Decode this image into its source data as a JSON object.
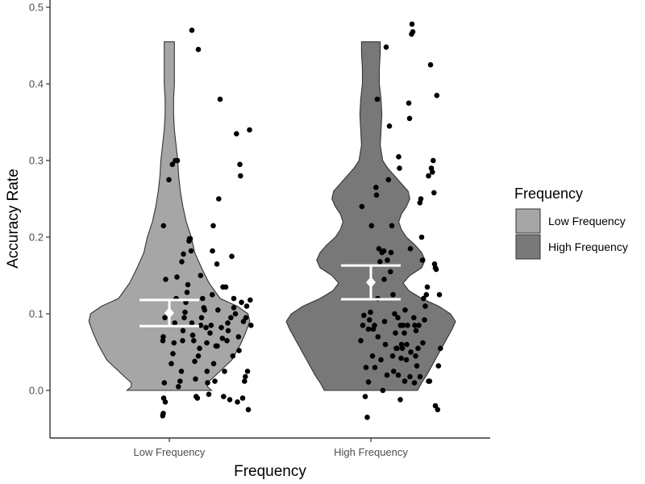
{
  "chart_data": {
    "type": "violin",
    "xlabel": "Frequency",
    "ylabel": "Accuracy Rate",
    "ylim": [
      -0.06,
      0.505
    ],
    "yticks": [
      "0.0",
      "0.1",
      "0.2",
      "0.3",
      "0.4",
      "0.5"
    ],
    "categories": [
      "Low Frequency",
      "High Frequency"
    ],
    "legend": {
      "title": "Frequency",
      "position": "right",
      "items": [
        "Low Frequency",
        "High Frequency"
      ]
    },
    "colors": {
      "low_fill": "#a6a6a6",
      "high_fill": "#787878",
      "outline": "#333333",
      "points": "#000000",
      "summary": "#ffffff"
    },
    "grid": false,
    "series": [
      {
        "name": "Low Frequency",
        "density": [
          [
            0.0,
            0.5
          ],
          [
            0.005,
            0.45
          ],
          [
            0.01,
            0.45
          ],
          [
            0.02,
            0.55
          ],
          [
            0.04,
            0.74
          ],
          [
            0.06,
            0.84
          ],
          [
            0.075,
            0.9
          ],
          [
            0.09,
            0.95
          ],
          [
            0.1,
            0.93
          ],
          [
            0.11,
            0.8
          ],
          [
            0.12,
            0.6
          ],
          [
            0.14,
            0.47
          ],
          [
            0.16,
            0.38
          ],
          [
            0.18,
            0.3
          ],
          [
            0.2,
            0.26
          ],
          [
            0.22,
            0.2
          ],
          [
            0.24,
            0.16
          ],
          [
            0.26,
            0.13
          ],
          [
            0.28,
            0.11
          ],
          [
            0.3,
            0.1
          ],
          [
            0.32,
            0.08
          ],
          [
            0.34,
            0.06
          ],
          [
            0.36,
            0.05
          ],
          [
            0.38,
            0.05
          ],
          [
            0.4,
            0.06
          ],
          [
            0.42,
            0.06
          ],
          [
            0.44,
            0.06
          ],
          [
            0.455,
            0.06
          ]
        ],
        "mean": 0.101,
        "ci": [
          0.084,
          0.118
        ],
        "points": [
          [
            -0.033,
            -0.033
          ],
          [
            -0.03,
            -0.03
          ],
          [
            -0.02,
            -0.015
          ],
          [
            -0.028,
            -0.01
          ],
          [
            -0.025,
            0.01
          ],
          [
            -0.029,
            0.215
          ],
          [
            -0.032,
            0.065
          ],
          [
            -0.03,
            0.07
          ],
          [
            -0.018,
            0.145
          ],
          [
            -0.022,
            0.095
          ],
          [
            -0.002,
            0.275
          ],
          [
            0.01,
            0.035
          ],
          [
            0.015,
            0.295
          ],
          [
            0.03,
            0.3
          ],
          [
            0.04,
            0.3
          ],
          [
            0.018,
            0.048
          ],
          [
            0.023,
            0.062
          ],
          [
            0.027,
            0.088
          ],
          [
            0.034,
            0.12
          ],
          [
            0.038,
            0.148
          ],
          [
            0.045,
            0.005
          ],
          [
            0.053,
            0.012
          ],
          [
            0.06,
            0.025
          ],
          [
            0.066,
            0.065
          ],
          [
            0.068,
            0.078
          ],
          [
            0.074,
            0.095
          ],
          [
            0.078,
            0.102
          ],
          [
            0.082,
            0.115
          ],
          [
            0.088,
            0.128
          ],
          [
            0.092,
            0.138
          ],
          [
            0.098,
            0.195
          ],
          [
            0.1,
            0.198
          ],
          [
            0.104,
            0.198
          ],
          [
            0.108,
            0.182
          ],
          [
            0.112,
            0.088
          ],
          [
            0.116,
            0.072
          ],
          [
            0.121,
            0.065
          ],
          [
            0.126,
            0.038
          ],
          [
            0.13,
            0.015
          ],
          [
            0.133,
            -0.008
          ],
          [
            0.139,
            -0.01
          ],
          [
            0.144,
            0.045
          ],
          [
            0.15,
            0.055
          ],
          [
            0.156,
            0.085
          ],
          [
            0.16,
            0.095
          ],
          [
            0.165,
            0.12
          ],
          [
            0.171,
            0.108
          ],
          [
            0.175,
            0.105
          ],
          [
            0.182,
            0.082
          ],
          [
            0.187,
            0.025
          ],
          [
            0.19,
            0.01
          ],
          [
            0.196,
            -0.005
          ],
          [
            0.202,
            0.075
          ],
          [
            0.207,
            0.085
          ],
          [
            0.213,
            0.125
          ],
          [
            0.218,
            0.215
          ],
          [
            0.22,
            0.035
          ],
          [
            0.226,
            0.012
          ],
          [
            0.231,
            0.058
          ],
          [
            0.236,
            0.165
          ],
          [
            0.241,
            0.105
          ],
          [
            0.245,
            0.25
          ],
          [
            0.252,
            0.38
          ],
          [
            0.258,
            0.082
          ],
          [
            0.263,
            0.068
          ],
          [
            0.269,
            -0.008
          ],
          [
            0.274,
            0.025
          ],
          [
            0.28,
            0.135
          ],
          [
            0.286,
            0.065
          ],
          [
            0.292,
            0.078
          ],
          [
            0.3,
            -0.012
          ],
          [
            0.305,
            0.095
          ],
          [
            0.31,
            0.175
          ],
          [
            0.315,
            0.045
          ],
          [
            0.32,
            0.12
          ],
          [
            0.328,
            0.1
          ],
          [
            0.333,
            0.335
          ],
          [
            0.338,
            -0.015
          ],
          [
            0.343,
            0.07
          ],
          [
            0.35,
            0.295
          ],
          [
            0.353,
            0.28
          ],
          [
            0.358,
            0.115
          ],
          [
            0.364,
            -0.01
          ],
          [
            0.368,
            0.09
          ],
          [
            0.373,
            0.012
          ],
          [
            0.377,
            0.018
          ],
          [
            0.38,
            0.095
          ],
          [
            0.384,
            0.11
          ],
          [
            0.388,
            0.025
          ],
          [
            0.392,
            -0.025
          ],
          [
            0.398,
            0.34
          ],
          [
            0.401,
            0.118
          ],
          [
            0.405,
            0.085
          ],
          [
            0.112,
            0.47
          ],
          [
            0.144,
            0.445
          ],
          [
            0.155,
            0.15
          ],
          [
            0.062,
            0.168
          ],
          [
            0.07,
            0.178
          ],
          [
            0.186,
            0.062
          ],
          [
            0.238,
            0.058
          ],
          [
            0.214,
            0.182
          ],
          [
            0.32,
            0.108
          ],
          [
            0.266,
            0.135
          ],
          [
            0.29,
            0.088
          ],
          [
            0.346,
            0.052
          ]
        ]
      },
      {
        "name": "High Frequency",
        "density": [
          [
            0.0,
            0.55
          ],
          [
            0.01,
            0.6
          ],
          [
            0.02,
            0.66
          ],
          [
            0.04,
            0.76
          ],
          [
            0.06,
            0.86
          ],
          [
            0.08,
            0.96
          ],
          [
            0.09,
            1.0
          ],
          [
            0.1,
            0.94
          ],
          [
            0.11,
            0.8
          ],
          [
            0.12,
            0.6
          ],
          [
            0.13,
            0.45
          ],
          [
            0.14,
            0.38
          ],
          [
            0.15,
            0.46
          ],
          [
            0.16,
            0.6
          ],
          [
            0.17,
            0.64
          ],
          [
            0.18,
            0.6
          ],
          [
            0.19,
            0.52
          ],
          [
            0.2,
            0.42
          ],
          [
            0.21,
            0.36
          ],
          [
            0.22,
            0.33
          ],
          [
            0.23,
            0.36
          ],
          [
            0.24,
            0.42
          ],
          [
            0.25,
            0.46
          ],
          [
            0.26,
            0.44
          ],
          [
            0.27,
            0.36
          ],
          [
            0.28,
            0.28
          ],
          [
            0.29,
            0.2
          ],
          [
            0.3,
            0.14
          ],
          [
            0.32,
            0.11
          ],
          [
            0.34,
            0.12
          ],
          [
            0.36,
            0.13
          ],
          [
            0.38,
            0.12
          ],
          [
            0.4,
            0.1
          ],
          [
            0.42,
            0.1
          ],
          [
            0.44,
            0.11
          ],
          [
            0.455,
            0.11
          ]
        ],
        "mean": 0.141,
        "ci": [
          0.119,
          0.163
        ],
        "points": [
          [
            0.95,
            0.065
          ],
          [
            0.955,
            0.24
          ],
          [
            0.96,
            0.085
          ],
          [
            0.965,
            0.098
          ],
          [
            0.972,
            -0.008
          ],
          [
            0.976,
            0.03
          ],
          [
            0.982,
            -0.035
          ],
          [
            0.988,
            0.08
          ],
          [
            0.993,
            0.092
          ],
          [
            0.998,
            0.102
          ],
          [
            1.003,
            0.215
          ],
          [
            1.008,
            0.045
          ],
          [
            1.012,
            0.08
          ],
          [
            1.02,
            0.03
          ],
          [
            1.025,
            0.265
          ],
          [
            1.028,
            0.255
          ],
          [
            1.032,
            0.38
          ],
          [
            1.035,
            0.07
          ],
          [
            1.04,
            0.185
          ],
          [
            1.045,
            0.168
          ],
          [
            1.05,
            0.04
          ],
          [
            1.055,
            0.18
          ],
          [
            1.059,
            0.0
          ],
          [
            1.064,
            0.182
          ],
          [
            1.068,
            0.09
          ],
          [
            1.072,
            0.06
          ],
          [
            1.076,
            0.448
          ],
          [
            1.082,
            0.17
          ],
          [
            1.087,
            0.275
          ],
          [
            1.092,
            0.345
          ],
          [
            1.097,
            0.155
          ],
          [
            1.1,
            0.18
          ],
          [
            1.104,
            0.215
          ],
          [
            1.108,
            0.045
          ],
          [
            1.113,
            0.025
          ],
          [
            1.118,
            0.1
          ],
          [
            1.122,
            0.075
          ],
          [
            1.126,
            0.055
          ],
          [
            1.13,
            0.055
          ],
          [
            1.134,
            0.095
          ],
          [
            1.138,
            0.305
          ],
          [
            1.142,
            0.29
          ],
          [
            1.147,
            0.085
          ],
          [
            1.15,
            0.042
          ],
          [
            1.156,
            0.055
          ],
          [
            1.16,
            0.085
          ],
          [
            1.166,
            0.075
          ],
          [
            1.17,
            0.105
          ],
          [
            1.176,
            0.04
          ],
          [
            1.182,
            0.085
          ],
          [
            1.188,
            0.375
          ],
          [
            1.192,
            0.355
          ],
          [
            1.196,
            0.185
          ],
          [
            1.202,
            0.465
          ],
          [
            1.208,
            0.468
          ],
          [
            1.213,
            0.095
          ],
          [
            1.218,
            0.085
          ],
          [
            1.222,
            0.045
          ],
          [
            1.228,
            0.032
          ],
          [
            1.234,
            0.055
          ],
          [
            1.238,
            0.085
          ],
          [
            1.243,
            0.245
          ],
          [
            1.248,
            0.25
          ],
          [
            1.252,
            0.2
          ],
          [
            1.256,
            0.17
          ],
          [
            1.261,
            0.12
          ],
          [
            1.266,
            0.092
          ],
          [
            1.27,
            0.11
          ],
          [
            1.275,
            0.125
          ],
          [
            1.28,
            0.135
          ],
          [
            1.286,
            0.012
          ],
          [
            1.291,
            0.012
          ],
          [
            1.296,
            0.425
          ],
          [
            1.3,
            0.29
          ],
          [
            1.305,
            0.285
          ],
          [
            1.309,
            0.3
          ],
          [
            1.313,
            0.258
          ],
          [
            1.316,
            0.165
          ],
          [
            1.32,
            0.16
          ],
          [
            1.324,
            0.158
          ],
          [
            1.327,
            0.385
          ],
          [
            1.331,
            -0.025
          ],
          [
            1.335,
            0.032
          ],
          [
            1.34,
            0.125
          ],
          [
            1.345,
            0.055
          ],
          [
            1.018,
            0.085
          ],
          [
            1.146,
            -0.012
          ],
          [
            1.204,
            0.478
          ],
          [
            1.11,
            0.125
          ],
          [
            1.034,
            0.12
          ],
          [
            1.258,
            0.062
          ],
          [
            1.152,
            0.06
          ],
          [
            1.066,
            0.145
          ],
          [
            1.198,
            0.05
          ],
          [
            1.286,
            0.28
          ],
          [
            1.224,
            0.078
          ],
          [
            1.178,
            0.06
          ],
          [
            1.08,
            0.02
          ],
          [
            1.136,
            0.02
          ],
          [
            1.194,
            0.018
          ],
          [
            1.244,
            0.018
          ],
          [
            1.32,
            -0.02
          ],
          [
            0.988,
            0.011
          ],
          [
            1.168,
            0.012
          ],
          [
            1.216,
            0.01
          ]
        ]
      }
    ]
  }
}
